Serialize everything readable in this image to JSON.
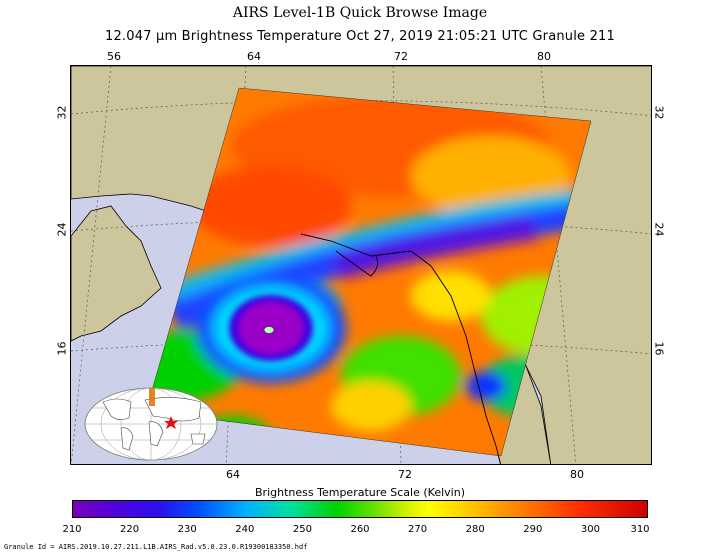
{
  "header": {
    "title": "AIRS Level-1B Quick Browse Image",
    "subtitle": "12.047 μm Brightness Temperature   Oct 27, 2019 21:05:21 UTC   Granule 211"
  },
  "map": {
    "top_lon_labels": [
      "56",
      "64",
      "72",
      "80"
    ],
    "bottom_lon_labels": [
      "64",
      "72",
      "80"
    ],
    "left_lat_labels": [
      "32",
      "24",
      "16"
    ],
    "right_lat_labels": [
      "32",
      "24",
      "16"
    ],
    "land_color": "#cdc59b",
    "ocean_color": "#ccd0e8"
  },
  "colorbar": {
    "title": "Brightness Temperature Scale (Kelvin)",
    "ticks": [
      "210",
      "220",
      "230",
      "240",
      "250",
      "260",
      "270",
      "280",
      "290",
      "300",
      "310"
    ]
  },
  "footer": {
    "granule_id": "Granule Id = AIRS.2019.10.27.211.L1B.AIRS_Rad.v5.0.23.0.R19300183350.hdf"
  }
}
